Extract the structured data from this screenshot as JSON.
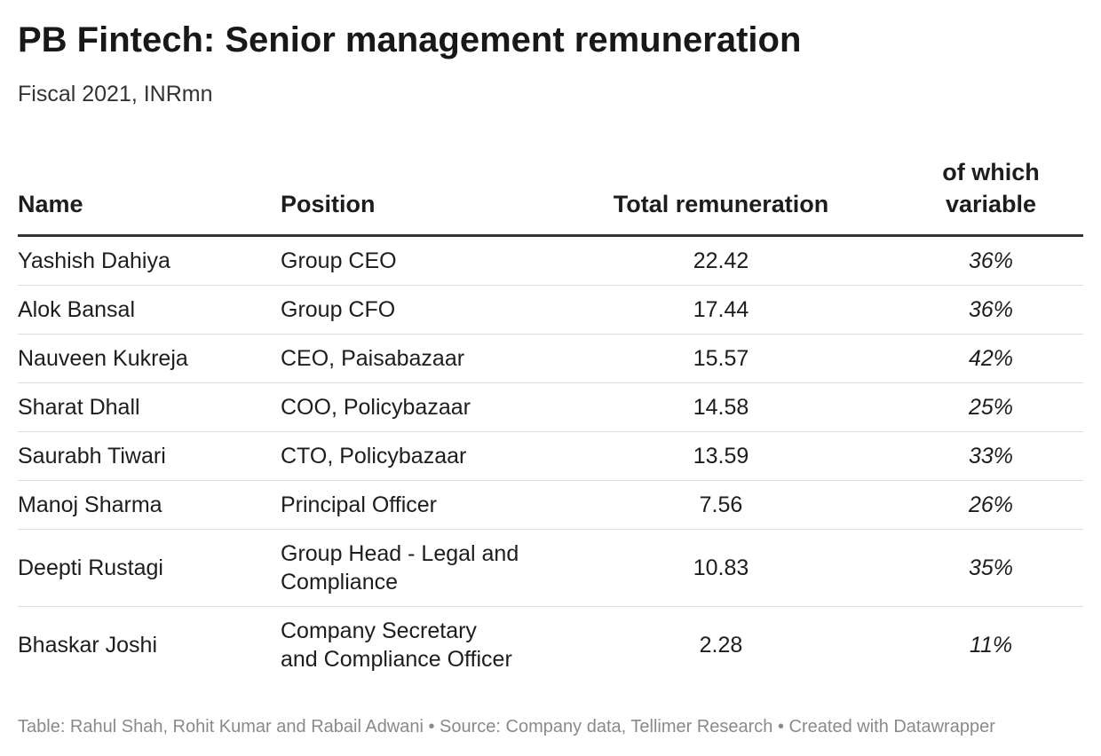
{
  "header": {
    "title": "PB Fintech: Senior management remuneration",
    "subtitle": "Fiscal 2021, INRmn"
  },
  "table": {
    "columns": [
      {
        "label": "Name"
      },
      {
        "label": "Position"
      },
      {
        "label": "Total remuneration"
      },
      {
        "label": "of which variable"
      }
    ]
  },
  "chart_data": {
    "type": "table",
    "title": "PB Fintech: Senior management remuneration",
    "subtitle": "Fiscal 2021, INRmn",
    "columns": [
      "Name",
      "Position",
      "Total remuneration",
      "of which variable"
    ],
    "rows": [
      {
        "name": "Yashish Dahiya",
        "position": "Group CEO",
        "total": "22.42",
        "variable": "36%"
      },
      {
        "name": "Alok Bansal",
        "position": "Group CFO",
        "total": "17.44",
        "variable": "36%"
      },
      {
        "name": "Nauveen Kukreja",
        "position": "CEO, Paisabazaar",
        "total": "15.57",
        "variable": "42%"
      },
      {
        "name": "Sharat Dhall",
        "position": "COO, Policybazaar",
        "total": "14.58",
        "variable": "25%"
      },
      {
        "name": "Saurabh Tiwari",
        "position": "CTO, Policybazaar",
        "total": "13.59",
        "variable": "33%"
      },
      {
        "name": "Manoj Sharma",
        "position": "Principal Officer",
        "total": "7.56",
        "variable": "26%"
      },
      {
        "name": "Deepti Rustagi",
        "position": "Group Head - Legal and Compliance",
        "total": "10.83",
        "variable": "35%"
      },
      {
        "name": "Bhaskar Joshi",
        "position": "Company Secretary and Compliance Officer",
        "total": "2.28",
        "variable": "11%"
      }
    ]
  },
  "footer": {
    "text": "Table: Rahul Shah, Rohit Kumar and Rabail Adwani • Source: Company data, Tellimer Research • Created with Datawrapper"
  }
}
